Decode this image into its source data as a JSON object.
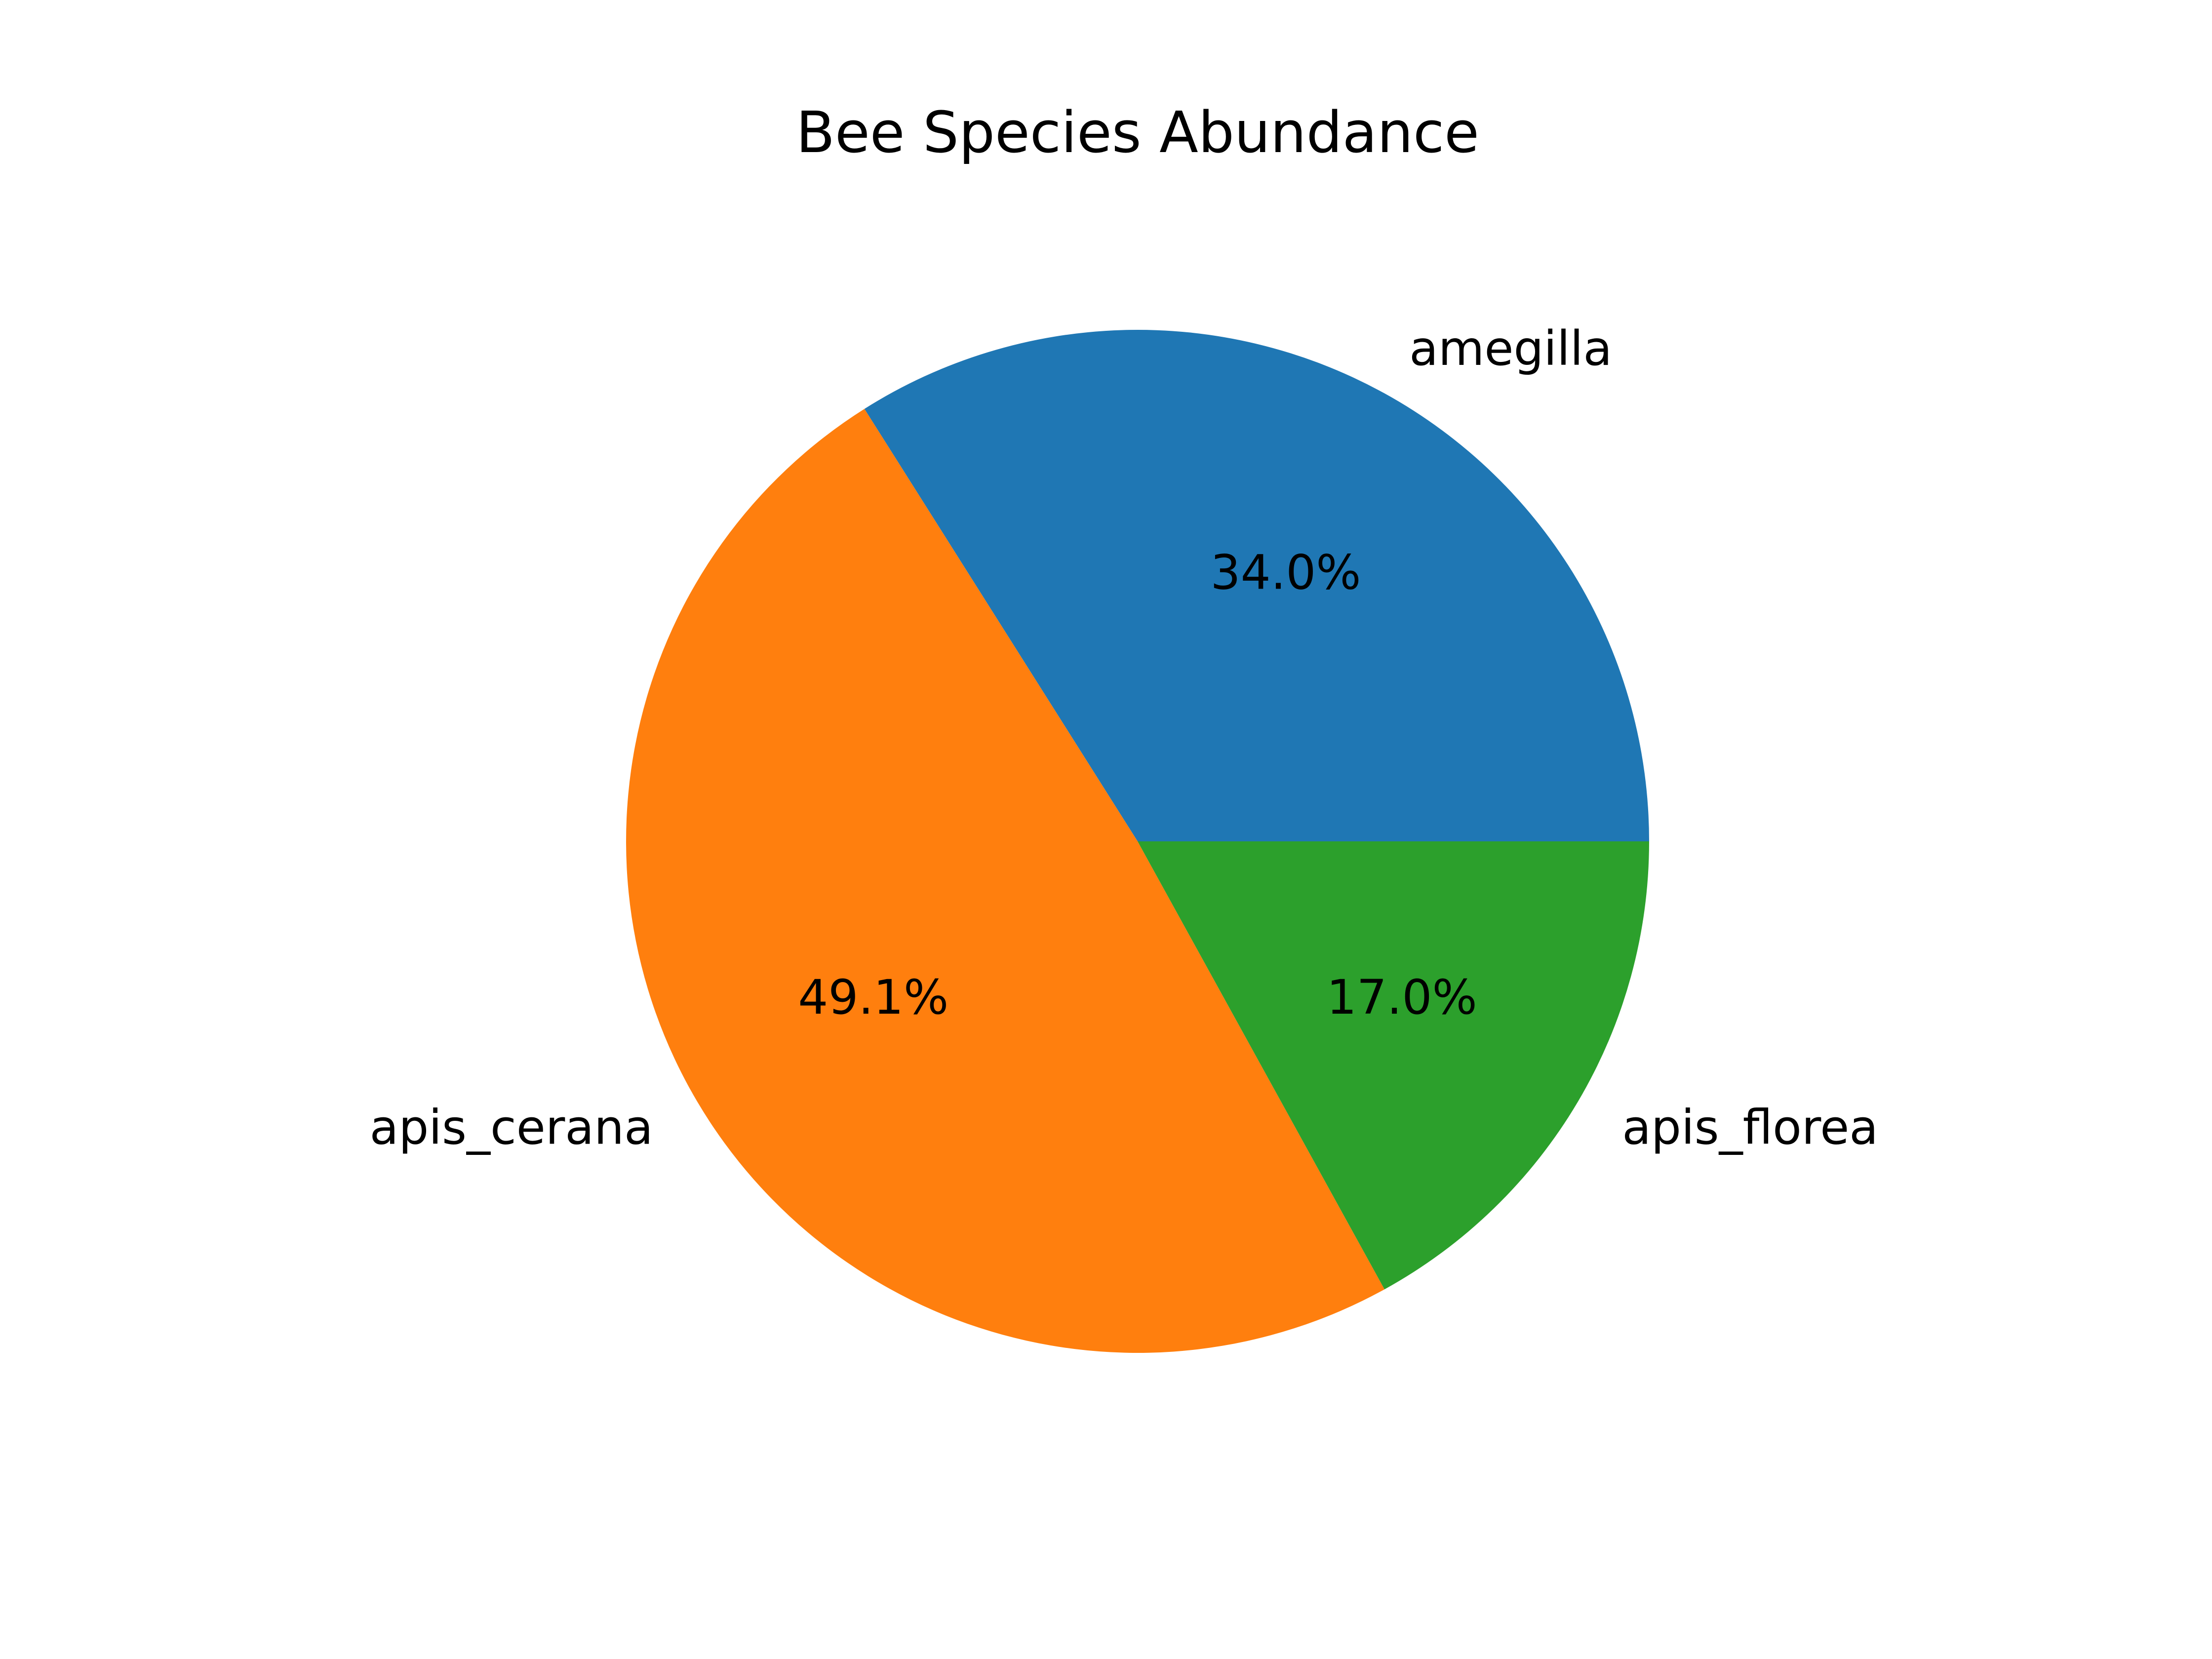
{
  "chart_data": {
    "type": "pie",
    "title": "Bee Species Abundance",
    "categories": [
      "amegilla",
      "apis_cerana",
      "apis_florea"
    ],
    "values": [
      34.0,
      49.1,
      17.0
    ],
    "percent_labels": [
      "34.0%",
      "49.1%",
      "17.0%"
    ],
    "colors": [
      "#1f77b4",
      "#ff7f0e",
      "#2ca02c"
    ],
    "start_angle_deg": 0,
    "direction": "counterclockwise",
    "legend": "none"
  }
}
